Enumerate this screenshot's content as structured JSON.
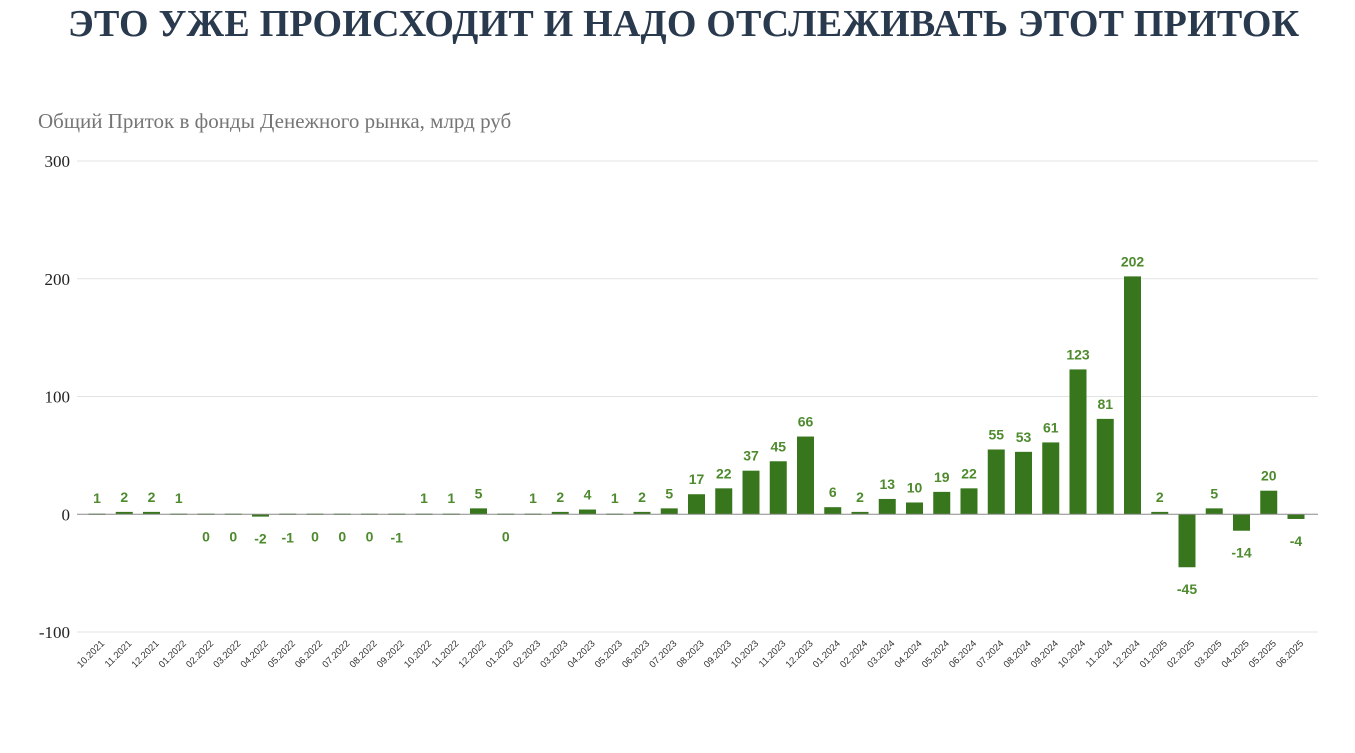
{
  "headline": "ЭТО УЖЕ ПРОИСХОДИТ И НАДО ОТСЛЕЖИВАТЬ ЭТОТ ПРИТОК",
  "chart_data": {
    "type": "bar",
    "title": "Общий Приток в фонды Денежного рынка, млрд руб",
    "xlabel": "",
    "ylabel": "",
    "ylim": [
      -100,
      300
    ],
    "yticks": [
      -100,
      0,
      100,
      200,
      300
    ],
    "grid": true,
    "legend": "none",
    "bar_color": "#38761d",
    "label_color": "#4e8a2e",
    "categories": [
      "10.2021",
      "11.2021",
      "12.2021",
      "01.2022",
      "02.2022",
      "03.2022",
      "04.2022",
      "05.2022",
      "06.2022",
      "07.2022",
      "08.2022",
      "09.2022",
      "10.2022",
      "11.2022",
      "12.2022",
      "01.2023",
      "02.2023",
      "03.2023",
      "04.2023",
      "05.2023",
      "06.2023",
      "07.2023",
      "08.2023",
      "09.2023",
      "10.2023",
      "11.2023",
      "12.2023",
      "01.2024",
      "02.2024",
      "03.2024",
      "04.2024",
      "05.2024",
      "06.2024",
      "07.2024",
      "08.2024",
      "09.2024",
      "10.2024",
      "11.2024",
      "12.2024",
      "01.2025",
      "02.2025",
      "03.2025",
      "04.2025",
      "05.2025",
      "06.2025"
    ],
    "values": [
      1,
      2,
      2,
      1,
      0,
      0,
      -2,
      -1,
      0,
      0,
      0,
      -1,
      1,
      1,
      5,
      0,
      1,
      2,
      4,
      1,
      2,
      5,
      17,
      22,
      37,
      45,
      66,
      6,
      2,
      13,
      10,
      19,
      22,
      55,
      53,
      61,
      123,
      81,
      202,
      2,
      -45,
      5,
      -14,
      20,
      -4
    ],
    "labels": [
      "1",
      "2",
      "2",
      "1",
      "0",
      "0",
      "-2",
      "-1",
      "0",
      "0",
      "0",
      "-1",
      "1",
      "1",
      "5",
      "0",
      "1",
      "2",
      "4",
      "1",
      "2",
      "5",
      "17",
      "22",
      "37",
      "45",
      "66",
      "6",
      "2",
      "13",
      "10",
      "19",
      "22",
      "55",
      "53",
      "61",
      "123",
      "81",
      "202",
      "2",
      "-45",
      "5",
      "-14",
      "20",
      "-4"
    ]
  }
}
